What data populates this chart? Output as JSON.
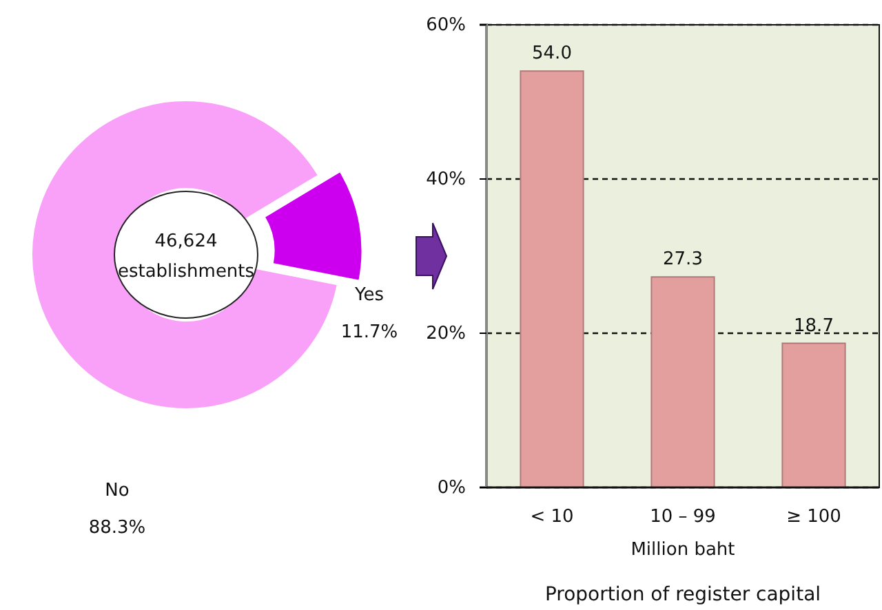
{
  "chart_data": [
    {
      "type": "donut",
      "categories": [
        "Yes",
        "No"
      ],
      "values": [
        11.7,
        88.3
      ],
      "colors": [
        "#cc00ee",
        "#f9a0f9"
      ],
      "value_labels": [
        "11.7%",
        "88.3%"
      ],
      "annotations": [
        "46,624",
        "establishments"
      ]
    },
    {
      "type": "bar",
      "title": "Proportion of register capital",
      "xlabel": "Million baht",
      "categories": [
        "< 10",
        "10 – 99",
        "≥ 100"
      ],
      "values": [
        54.0,
        27.3,
        18.7
      ],
      "value_labels": [
        "54.0",
        "27.3",
        "18.7"
      ],
      "color": "#e39e9e",
      "ylim": [
        0,
        60
      ],
      "yticks": [
        {
          "value": 0,
          "label": "0%"
        },
        {
          "value": 20,
          "label": "20%"
        },
        {
          "value": 40,
          "label": "40%"
        },
        {
          "value": 60,
          "label": "60%"
        }
      ],
      "grid": "y",
      "line_style": "dashed"
    }
  ]
}
